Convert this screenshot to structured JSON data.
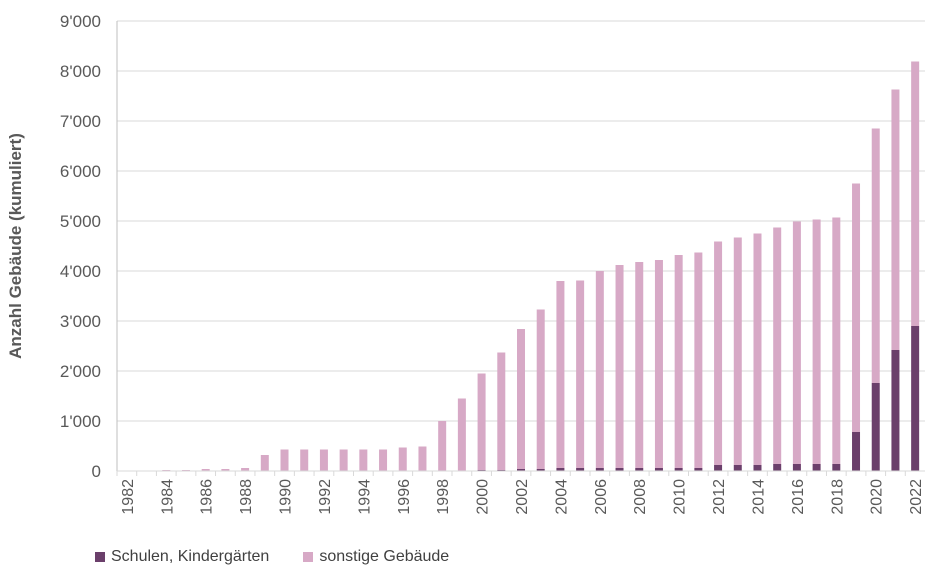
{
  "chart_data": {
    "type": "bar",
    "stacked": true,
    "title": "",
    "xlabel": "",
    "ylabel": "Anzahl Gebäude (kumuliert)",
    "ylim": [
      0,
      9000
    ],
    "yticks": [
      "0",
      "1'000",
      "2'000",
      "3'000",
      "4'000",
      "5'000",
      "6'000",
      "7'000",
      "8'000",
      "9'000"
    ],
    "grid": true,
    "legend_position": "bottom",
    "categories": [
      "1982",
      "1983",
      "1984",
      "1985",
      "1986",
      "1987",
      "1988",
      "1989",
      "1990",
      "1991",
      "1992",
      "1993",
      "1994",
      "1995",
      "1996",
      "1997",
      "1998",
      "1999",
      "2000",
      "2001",
      "2002",
      "2003",
      "2004",
      "2005",
      "2006",
      "2007",
      "2008",
      "2009",
      "2010",
      "2011",
      "2012",
      "2013",
      "2014",
      "2015",
      "2016",
      "2017",
      "2018",
      "2019",
      "2020",
      "2021",
      "2022"
    ],
    "series": [
      {
        "name": "Schulen, Kindergärten",
        "color": "#6b3f6b",
        "values": [
          0,
          0,
          0,
          0,
          0,
          0,
          0,
          0,
          0,
          0,
          0,
          0,
          0,
          0,
          0,
          0,
          0,
          0,
          20,
          20,
          40,
          40,
          60,
          60,
          60,
          60,
          60,
          60,
          60,
          60,
          120,
          120,
          120,
          140,
          140,
          140,
          140,
          780,
          1760,
          2420,
          2900
        ]
      },
      {
        "name": "sonstige Gebäude",
        "color": "#d7a9c6",
        "values": [
          0,
          0,
          20,
          20,
          40,
          40,
          60,
          320,
          430,
          430,
          430,
          430,
          430,
          430,
          470,
          490,
          1000,
          1450,
          1930,
          2350,
          2800,
          3190,
          3740,
          3750,
          3940,
          4060,
          4120,
          4160,
          4260,
          4310,
          4470,
          4550,
          4630,
          4730,
          4850,
          4890,
          4930,
          4970,
          5090,
          5210,
          5290
        ]
      }
    ]
  }
}
